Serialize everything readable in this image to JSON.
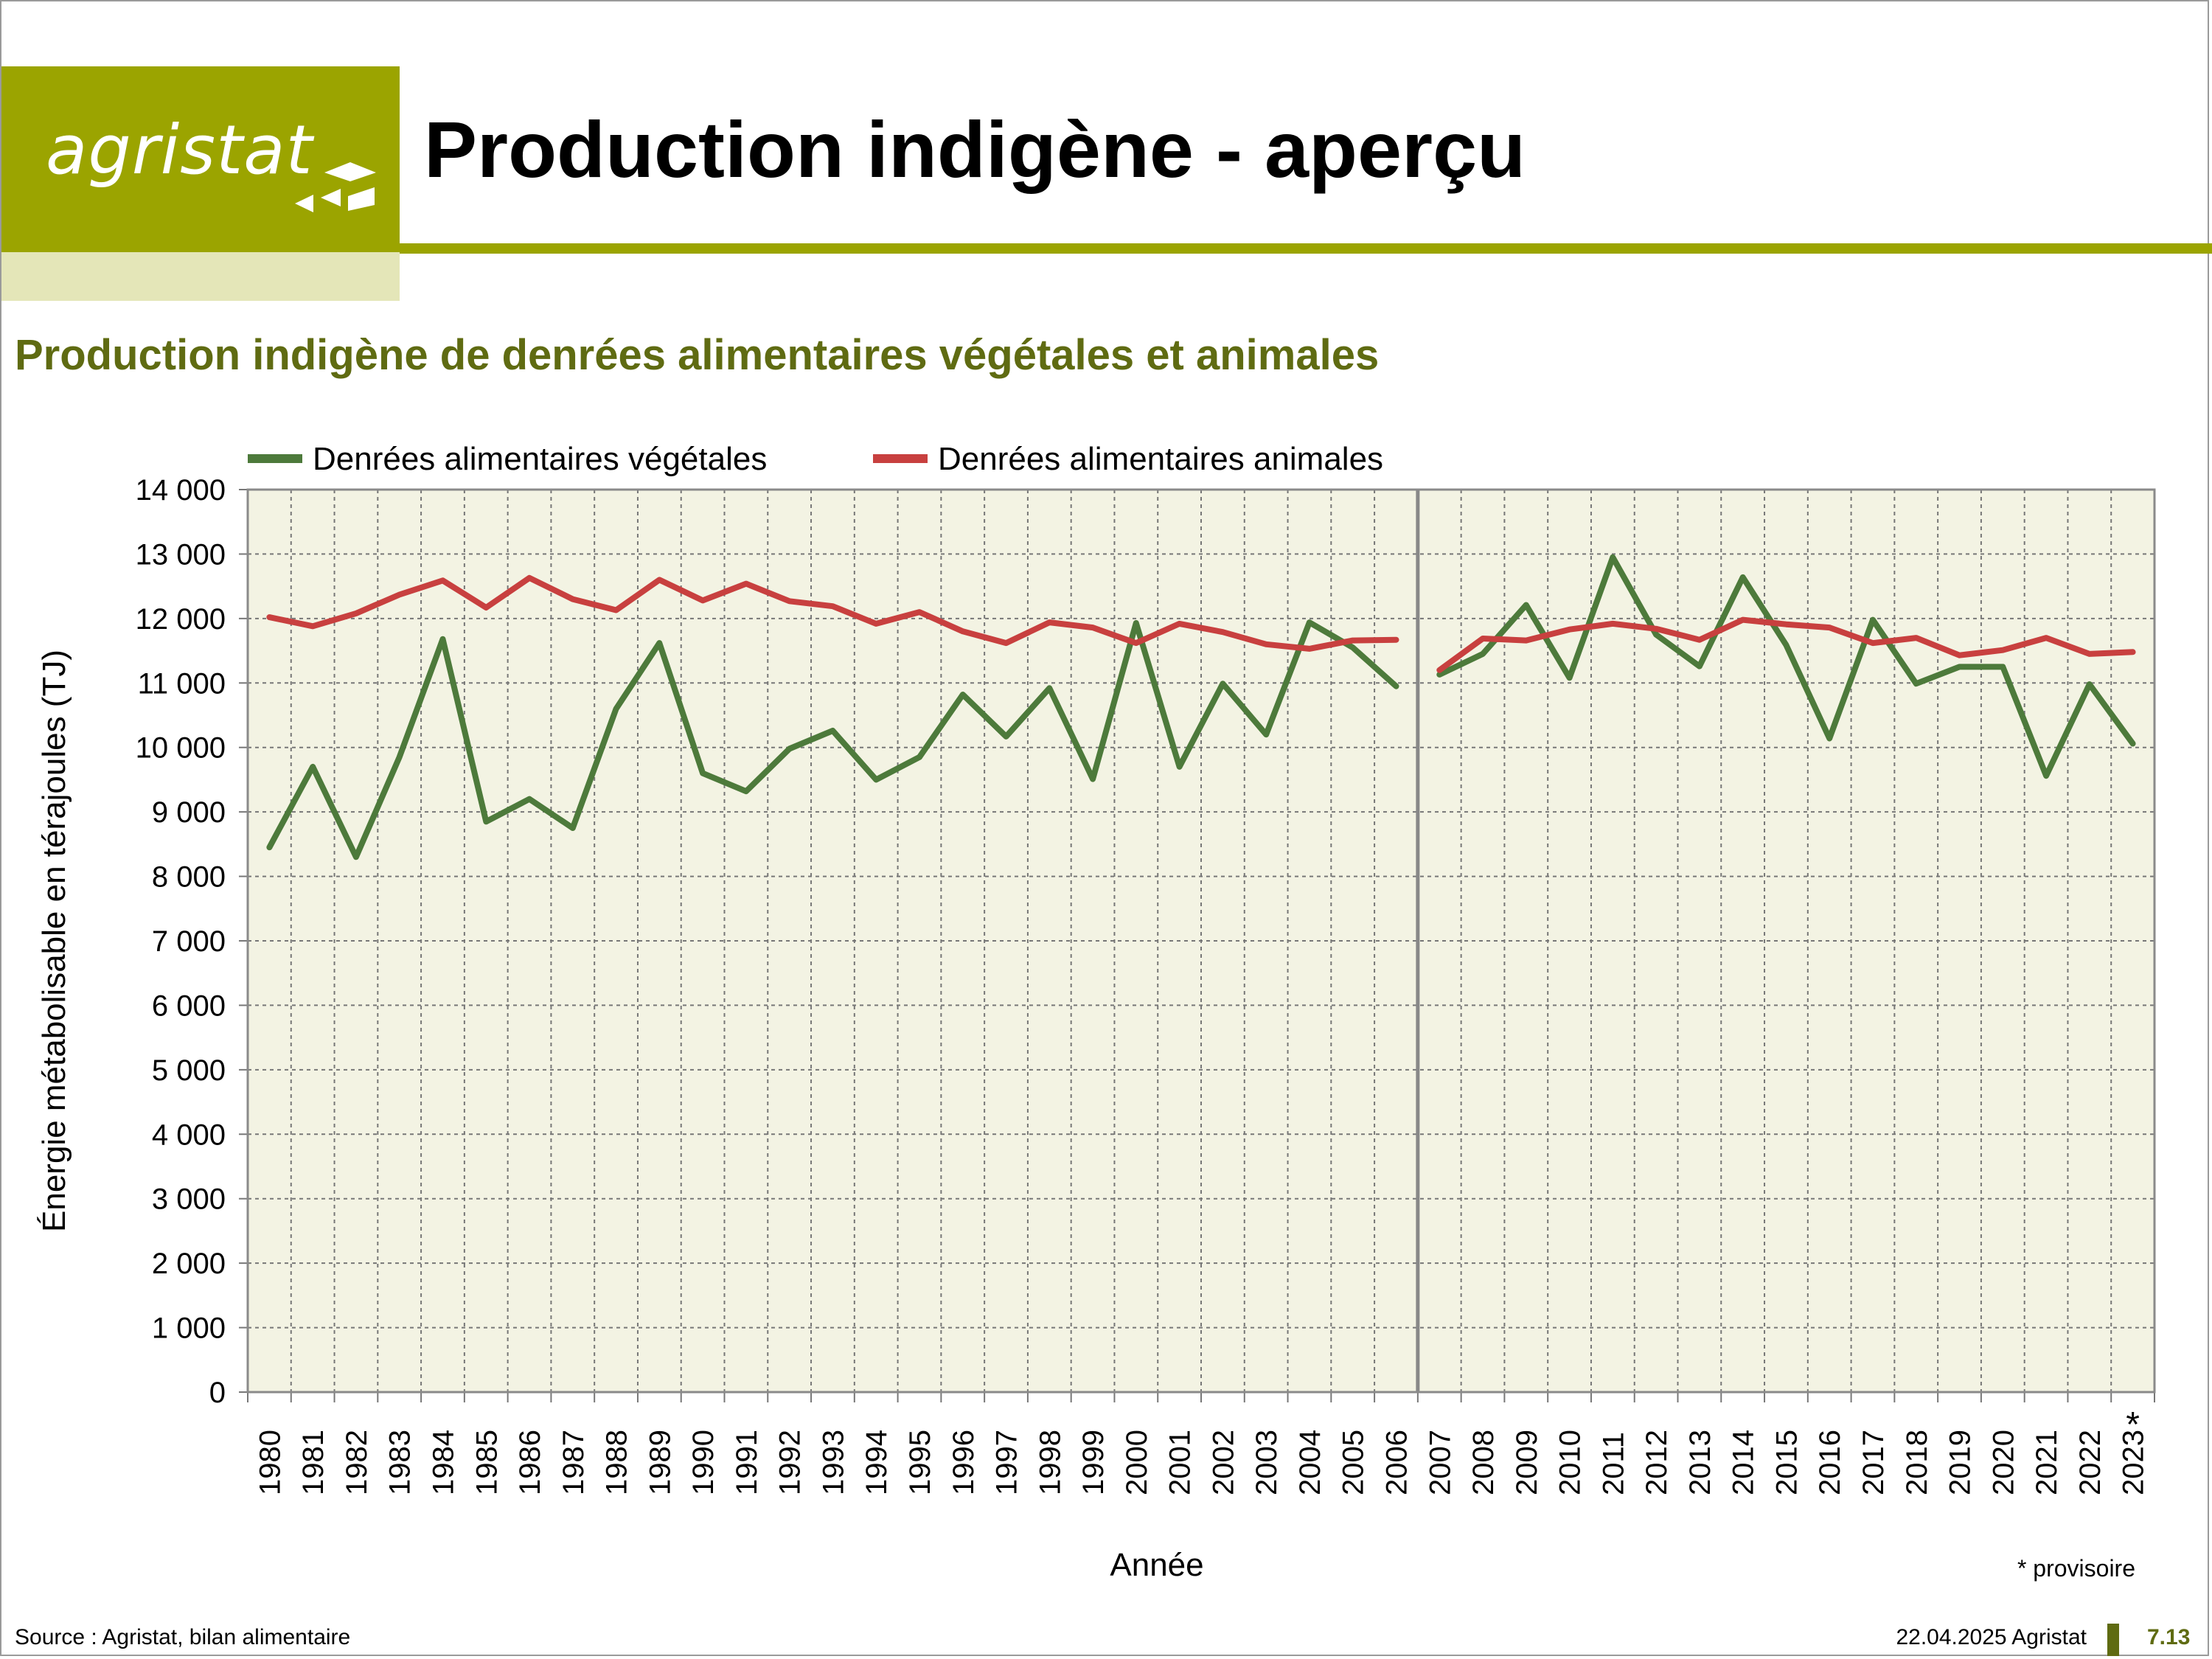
{
  "header": {
    "logo_text": "agristat",
    "title": "Production indigène - aperçu"
  },
  "subtitle": "Production indigène de denrées alimentaires végétales et animales",
  "colors": {
    "brand": "#9ba400",
    "brand_light": "#e4e6b8",
    "dark_olive": "#5f6b12",
    "plot_bg": "#f3f3e3",
    "series_veg": "#4d7a3b",
    "series_anim": "#c8403f"
  },
  "chart_data": {
    "type": "line",
    "title": "",
    "xlabel": "Année",
    "ylabel": "Énergie métabolisable en térajoules (TJ)",
    "ylim": [
      0,
      14000
    ],
    "y_ticks": [
      "0",
      "1 000",
      "2 000",
      "3 000",
      "4 000",
      "5 000",
      "6 000",
      "7 000",
      "8 000",
      "9 000",
      "10 000",
      "11 000",
      "12 000",
      "13 000",
      "14 000"
    ],
    "categories": [
      "1980",
      "1981",
      "1982",
      "1983",
      "1984",
      "1985",
      "1986",
      "1987",
      "1988",
      "1989",
      "1990",
      "1991",
      "1992",
      "1993",
      "1994",
      "1995",
      "1996",
      "1997",
      "1998",
      "1999",
      "2000",
      "2001",
      "2002",
      "2003",
      "2004",
      "2005",
      "2006",
      "2007",
      "2008",
      "2009",
      "2010",
      "2011",
      "2012",
      "2013",
      "2014",
      "2015",
      "2016",
      "2017",
      "2018",
      "2019",
      "2020",
      "2021",
      "2022",
      "2023"
    ],
    "series": [
      {
        "name": "Denrées alimentaires végétales",
        "values": [
          8450,
          9700,
          8300,
          9850,
          11680,
          8850,
          9200,
          8750,
          10600,
          11620,
          9600,
          9320,
          9980,
          10260,
          9500,
          9850,
          10820,
          10170,
          10920,
          9510,
          11930,
          9700,
          10990,
          10200,
          11940,
          11550,
          10950,
          11130,
          11450,
          12210,
          11080,
          12950,
          11750,
          11260,
          12640,
          11590,
          10140,
          11980,
          10990,
          11250,
          11250,
          9560,
          10980,
          10060
        ]
      },
      {
        "name": "Denrées alimentaires animales",
        "values": [
          12020,
          11880,
          12080,
          12370,
          12590,
          12170,
          12630,
          12300,
          12130,
          12600,
          12280,
          12540,
          12270,
          12190,
          11920,
          12100,
          11800,
          11620,
          11940,
          11860,
          11620,
          11920,
          11790,
          11600,
          11530,
          11660,
          11670,
          11200,
          11690,
          11660,
          11830,
          11920,
          11840,
          11670,
          11980,
          11910,
          11860,
          11620,
          11700,
          11430,
          11510,
          11700,
          11450,
          11480
        ]
      }
    ],
    "break_after": "2006",
    "grid": true,
    "legend_position": "top",
    "provisional_marker": "*",
    "provisional_year": "2023",
    "note": "* provisoire"
  },
  "footer": {
    "source": "Source : Agristat, bilan alimentaire",
    "date": "22.04.2025 Agristat",
    "page": "7.13"
  }
}
